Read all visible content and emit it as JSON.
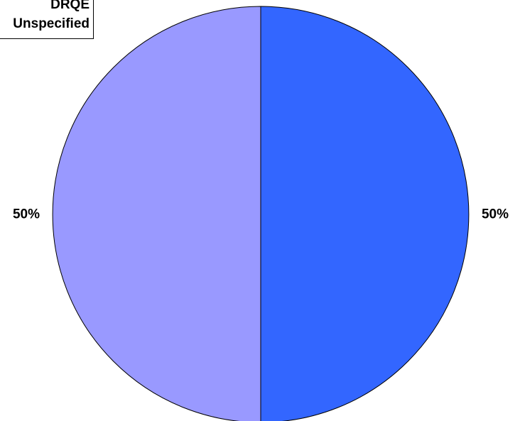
{
  "chart_data": {
    "type": "pie",
    "series": [
      {
        "name": "DRQE",
        "value": 50,
        "label": "50%",
        "color": "#3366ff"
      },
      {
        "name": "Unspecified",
        "value": 50,
        "label": "50%",
        "color": "#9999ff"
      }
    ],
    "legend": {
      "items": [
        "DRQE",
        "Unspecified"
      ],
      "position": "top-left"
    }
  }
}
